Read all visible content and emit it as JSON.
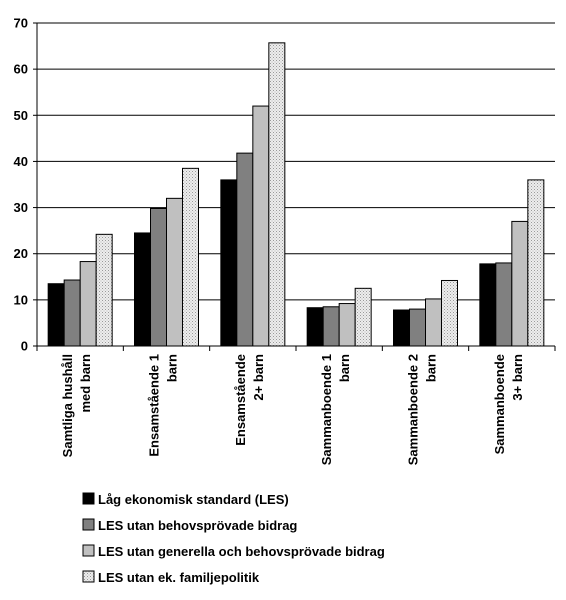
{
  "chart_data": {
    "type": "bar",
    "ylim": [
      0,
      70
    ],
    "yticks": [
      "0",
      "10",
      "20",
      "30",
      "40",
      "50",
      "60",
      "70"
    ],
    "categories": [
      [
        "Samtliga hushåll",
        "med barn"
      ],
      [
        "Ensamstående  1",
        "barn"
      ],
      [
        "Ensamstående",
        "2+ barn"
      ],
      [
        "Sammanboende 1",
        "barn"
      ],
      [
        "Sammanboende 2",
        "barn"
      ],
      [
        "Sammanboende",
        "3+ barn"
      ]
    ],
    "series": [
      {
        "name": "Låg ekonomisk standard (LES)",
        "color": "#000000",
        "pattern": "solid",
        "values": [
          13.5,
          24.5,
          36,
          8.3,
          7.8,
          17.8
        ]
      },
      {
        "name": "LES utan behovsprövade bidrag",
        "color": "#808080",
        "pattern": "solid",
        "values": [
          14.3,
          29.8,
          41.8,
          8.5,
          8.0,
          18.0
        ]
      },
      {
        "name": "LES utan generella och behovsprövade bidrag",
        "color": "#c0c0c0",
        "pattern": "solid",
        "values": [
          18.3,
          32.0,
          52.0,
          9.2,
          10.2,
          27.0
        ]
      },
      {
        "name": "LES utan ek. familjepolitik",
        "color": "#e6e6e6",
        "pattern": "dotted",
        "values": [
          24.2,
          38.5,
          65.7,
          12.5,
          14.2,
          36.0
        ]
      }
    ],
    "legend_position": "bottom-left",
    "grid": "horizontal"
  }
}
